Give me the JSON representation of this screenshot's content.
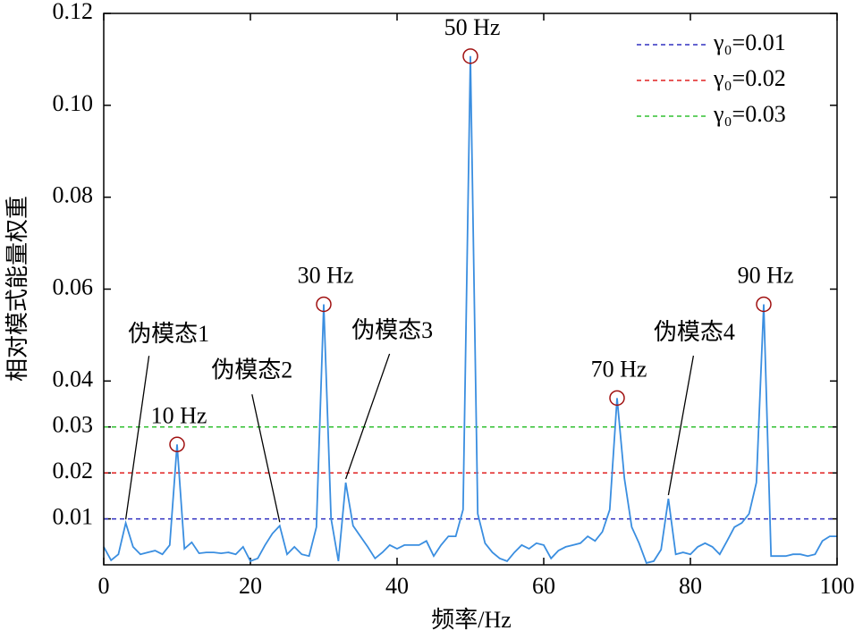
{
  "chart_data": {
    "type": "line",
    "xlabel": "频率/Hz",
    "ylabel": "相对模式能量权重",
    "x": [
      0,
      1,
      2,
      3,
      4,
      5,
      6,
      7,
      8,
      9,
      10,
      11,
      12,
      13,
      14,
      15,
      16,
      17,
      18,
      19,
      20,
      21,
      22,
      23,
      24,
      25,
      26,
      27,
      28,
      29,
      30,
      31,
      32,
      33,
      34,
      35,
      36,
      37,
      38,
      39,
      40,
      41,
      42,
      43,
      44,
      45,
      46,
      47,
      48,
      49,
      50,
      51,
      52,
      53,
      54,
      55,
      56,
      57,
      58,
      59,
      60,
      61,
      62,
      63,
      64,
      65,
      66,
      67,
      68,
      69,
      70,
      71,
      72,
      73,
      74,
      75,
      76,
      77,
      78,
      79,
      80,
      81,
      82,
      83,
      84,
      85,
      86,
      87,
      88,
      89,
      90,
      91,
      92,
      93,
      94,
      95,
      96,
      97,
      98,
      99,
      100
    ],
    "series": [
      {
        "color": "#3a8ee0",
        "values": [
          0.0039,
          0.001,
          0.0023,
          0.0091,
          0.0039,
          0.0023,
          0.0027,
          0.0031,
          0.0023,
          0.0043,
          0.0262,
          0.0035,
          0.0049,
          0.0025,
          0.0027,
          0.0027,
          0.0025,
          0.0027,
          0.0023,
          0.0039,
          0.0008,
          0.0014,
          0.0043,
          0.0068,
          0.0085,
          0.0023,
          0.0039,
          0.0023,
          0.0019,
          0.0082,
          0.0567,
          0.0101,
          0.0008,
          0.0179,
          0.0085,
          0.0062,
          0.0039,
          0.0014,
          0.0027,
          0.0043,
          0.0035,
          0.0043,
          0.0043,
          0.0043,
          0.0052,
          0.0019,
          0.0043,
          0.0062,
          0.0062,
          0.012,
          0.1107,
          0.0111,
          0.0047,
          0.0027,
          0.0014,
          0.0008,
          0.0027,
          0.0043,
          0.0035,
          0.0047,
          0.0043,
          0.0014,
          0.0031,
          0.0039,
          0.0043,
          0.0047,
          0.0062,
          0.0052,
          0.0072,
          0.012,
          0.0363,
          0.0188,
          0.0082,
          0.0047,
          0.0004,
          0.0008,
          0.0033,
          0.0144,
          0.0023,
          0.0027,
          0.0023,
          0.0039,
          0.0047,
          0.0039,
          0.0023,
          0.0052,
          0.0082,
          0.0091,
          0.0111,
          0.0179,
          0.0567,
          0.0019,
          0.0019,
          0.0019,
          0.0023,
          0.0023,
          0.0019,
          0.0023,
          0.0052,
          0.0062,
          0.0062
        ]
      }
    ],
    "thresholds": [
      {
        "name": "γ₀=0.01",
        "value": 0.01,
        "color": "#3030c0"
      },
      {
        "name": "γ₀=0.02",
        "value": 0.02,
        "color": "#e02020"
      },
      {
        "name": "γ₀=0.03",
        "value": 0.03,
        "color": "#30c030"
      }
    ],
    "peaks": [
      {
        "label": "10 Hz",
        "x": 10
      },
      {
        "label": "30 Hz",
        "x": 30
      },
      {
        "label": "50 Hz",
        "x": 50
      },
      {
        "label": "70 Hz",
        "x": 70
      },
      {
        "label": "90 Hz",
        "x": 90
      }
    ],
    "peak_color": "#a01010",
    "pseudo_modes": [
      {
        "label": "伪模态1",
        "x": 3
      },
      {
        "label": "伪模态2",
        "x": 24
      },
      {
        "label": "伪模态3",
        "x": 33
      },
      {
        "label": "伪模态4",
        "x": 77
      }
    ],
    "pseudo_color": "#5cc8c8",
    "xlim": [
      0,
      100
    ],
    "xticks": [
      0,
      20,
      40,
      60,
      80,
      100
    ],
    "ylim": [
      0,
      0.12
    ],
    "yticks": [
      0.01,
      0.02,
      0.03,
      0.04,
      0.06,
      0.08,
      {
        "value": 0.1,
        "label": "0.10"
      },
      0.12
    ],
    "legend": "upper right"
  }
}
